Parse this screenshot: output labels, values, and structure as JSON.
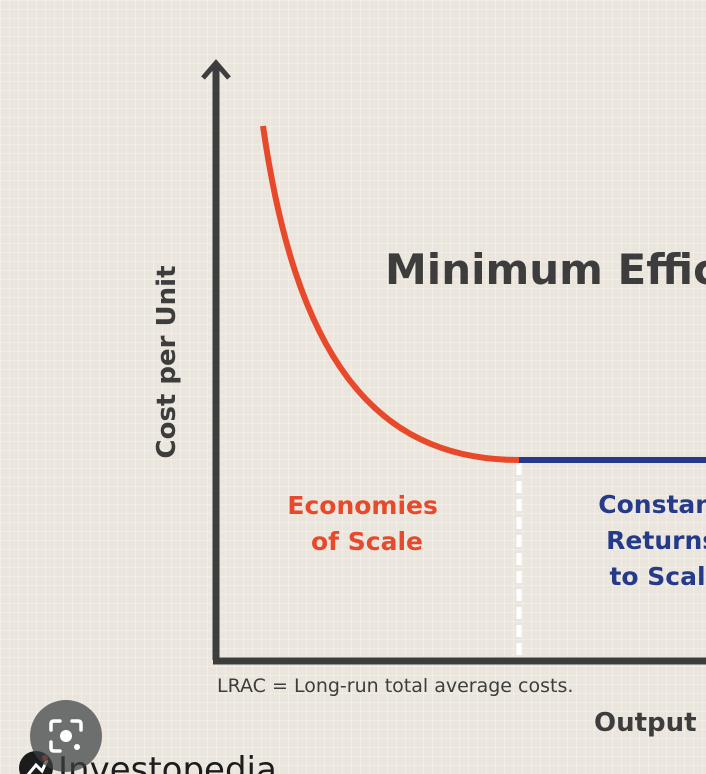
{
  "chart_data": {
    "type": "line",
    "title": "Minimum Efficient Scale",
    "ylabel": "Cost per Unit",
    "xlabel": "Output",
    "note": "LRAC = Long-run total average costs.",
    "series": [
      {
        "color": "#e8492a"
      },
      {
        "color": "#263a8a"
      }
    ],
    "regions": [
      {
        "lines": [
          "Economies",
          "of Scale"
        ],
        "color": "#e8492a"
      },
      {
        "lines": [
          "Constant",
          "Returns",
          "to Scale"
        ],
        "color": "#263a8a"
      }
    ],
    "axis_color": "#3d3d3d"
  },
  "brand": {
    "name": "Investopedia",
    "color": "#1c1c1c"
  },
  "lens": {
    "icon": "lens-icon"
  }
}
